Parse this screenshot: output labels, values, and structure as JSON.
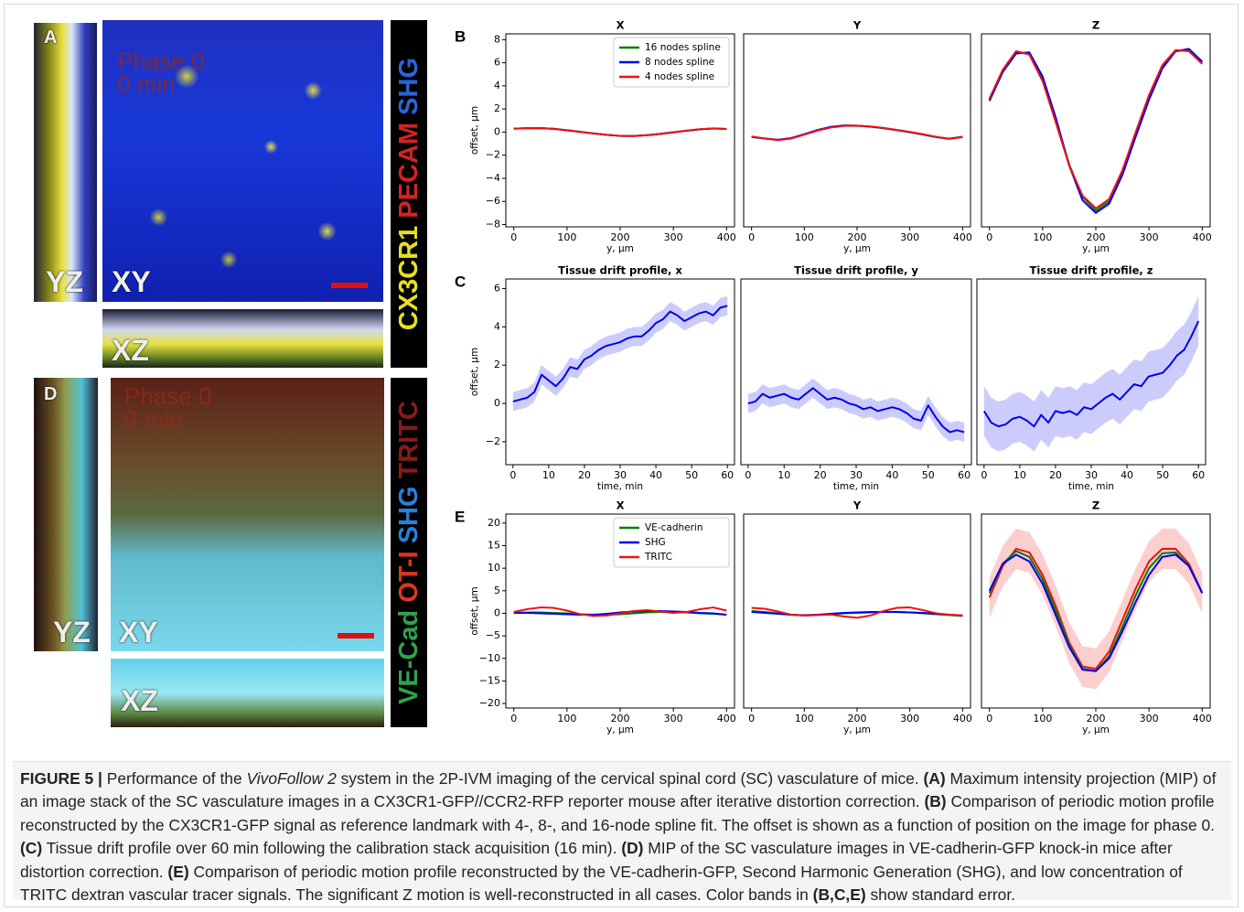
{
  "figure": {
    "panel_a": {
      "letter": "A",
      "yz": "YZ",
      "xy": "XY",
      "xz": "XZ",
      "phase": "Phase 0",
      "time": "0 min",
      "channels": [
        {
          "text": "CX3CR1",
          "color": "#e6df22"
        },
        {
          "text": "PECAM",
          "color": "#d42222"
        },
        {
          "text": "SHG",
          "color": "#2a64d8"
        }
      ]
    },
    "panel_d": {
      "letter": "D",
      "yz": "YZ",
      "xy": "XY",
      "xz": "XZ",
      "phase": "Phase 0",
      "time": "0 min",
      "channels": [
        {
          "text": "VE-Cad",
          "color": "#2fa24a"
        },
        {
          "text": "OT-I",
          "color": "#e0341c"
        },
        {
          "text": "SHG",
          "color": "#2a7fd8"
        },
        {
          "text": "TRITC",
          "color": "#8a1a1a"
        }
      ]
    },
    "caption": {
      "label": "FIGURE 5 |",
      "parts": [
        {
          "text": " Performance of the "
        },
        {
          "text": "VivoFollow 2",
          "italic": true
        },
        {
          "text": " system in the 2P-IVM imaging of the cervical spinal cord (SC) vasculature of mice. "
        },
        {
          "text": "(A)",
          "bold": true
        },
        {
          "text": " Maximum intensity projection (MIP) of an image stack of the SC vasculature images in a CX3CR1-GFP//CCR2-RFP reporter mouse after iterative distortion correction. "
        },
        {
          "text": "(B)",
          "bold": true
        },
        {
          "text": " Comparison of periodic motion profile reconstructed by the CX3CR1-GFP signal as reference landmark with 4-, 8-, and 16-node spline fit. The offset is shown as a function of position on the image for phase 0. "
        },
        {
          "text": "(C)",
          "bold": true
        },
        {
          "text": " Tissue drift profile over 60 min following the calibration stack acquisition (16 min). "
        },
        {
          "text": "(D)",
          "bold": true
        },
        {
          "text": " MIP of the SC vasculature images in VE-cadherin-GFP knock-in mice after distortion correction. "
        },
        {
          "text": "(E)",
          "bold": true
        },
        {
          "text": " Comparison of periodic motion profile reconstructed by the VE-cadherin-GFP, Second Harmonic Generation (SHG), and low concentration of TRITC dextran vascular tracer signals. The significant Z motion is well-reconstructed in all cases. Color bands in "
        },
        {
          "text": "(B,C,E)",
          "bold": true
        },
        {
          "text": " show standard error."
        }
      ]
    }
  },
  "chart_data": [
    {
      "type": "line",
      "panel": "B",
      "title": "X",
      "xlabel": "y, μm",
      "ylabel": "offset, μm",
      "legend": "upper right",
      "xlim": [
        -15,
        415
      ],
      "ylim": [
        -8.2,
        8.5
      ],
      "xticks": [
        0,
        100,
        200,
        300,
        400
      ],
      "yticks": [
        {
          "value": -8,
          "label": "−8"
        },
        {
          "value": -6,
          "label": "−6"
        },
        {
          "value": -4,
          "label": "−4"
        },
        {
          "value": -2,
          "label": "−2"
        },
        0,
        2,
        4,
        6,
        8
      ],
      "x": [
        0,
        25,
        50,
        75,
        100,
        125,
        150,
        175,
        200,
        225,
        250,
        275,
        300,
        325,
        350,
        375,
        400
      ],
      "series": [
        {
          "name": "16 nodes spline",
          "color": "#008000",
          "values": [
            0.3,
            0.34,
            0.35,
            0.28,
            0.15,
            0.02,
            -0.12,
            -0.24,
            -0.33,
            -0.34,
            -0.28,
            -0.16,
            -0.02,
            0.12,
            0.24,
            0.32,
            0.27
          ]
        },
        {
          "name": "8 nodes spline",
          "color": "#0000ee",
          "values": [
            0.3,
            0.33,
            0.34,
            0.28,
            0.16,
            0.02,
            -0.12,
            -0.25,
            -0.33,
            -0.33,
            -0.27,
            -0.16,
            -0.02,
            0.12,
            0.24,
            0.31,
            0.27
          ]
        },
        {
          "name": "4 nodes spline",
          "color": "#ee1111",
          "values": [
            0.29,
            0.34,
            0.35,
            0.29,
            0.15,
            0.01,
            -0.13,
            -0.24,
            -0.32,
            -0.34,
            -0.28,
            -0.17,
            -0.03,
            0.12,
            0.25,
            0.32,
            0.26
          ]
        }
      ]
    },
    {
      "type": "line",
      "title": "Y",
      "xlabel": "y, μm",
      "xlim": [
        -15,
        415
      ],
      "ylim": [
        -8.2,
        8.5
      ],
      "xticks": [
        0,
        100,
        200,
        300,
        400
      ],
      "x": [
        0,
        25,
        50,
        75,
        100,
        125,
        150,
        175,
        200,
        225,
        250,
        275,
        300,
        325,
        350,
        375,
        400
      ],
      "series": [
        {
          "color": "#008000",
          "values": [
            -0.4,
            -0.55,
            -0.68,
            -0.55,
            -0.2,
            0.15,
            0.42,
            0.55,
            0.55,
            0.48,
            0.35,
            0.18,
            0.0,
            -0.2,
            -0.42,
            -0.58,
            -0.42
          ]
        },
        {
          "color": "#0000ee",
          "values": [
            -0.42,
            -0.56,
            -0.66,
            -0.52,
            -0.18,
            0.18,
            0.45,
            0.58,
            0.56,
            0.47,
            0.34,
            0.17,
            -0.01,
            -0.22,
            -0.44,
            -0.57,
            -0.4
          ]
        },
        {
          "color": "#ee1111",
          "values": [
            -0.38,
            -0.55,
            -0.7,
            -0.56,
            -0.22,
            0.13,
            0.4,
            0.54,
            0.55,
            0.49,
            0.36,
            0.19,
            0.01,
            -0.19,
            -0.41,
            -0.59,
            -0.43
          ]
        }
      ]
    },
    {
      "type": "line",
      "title": "Z",
      "xlabel": "y, μm",
      "xlim": [
        -15,
        415
      ],
      "ylim": [
        -8.2,
        8.5
      ],
      "xticks": [
        0,
        100,
        200,
        300,
        400
      ],
      "x": [
        0,
        25,
        50,
        75,
        100,
        125,
        150,
        175,
        200,
        225,
        250,
        275,
        300,
        325,
        350,
        375,
        400
      ],
      "series": [
        {
          "color": "#008000",
          "values": [
            2.8,
            5.3,
            6.9,
            6.8,
            4.6,
            1.0,
            -2.8,
            -5.6,
            -6.8,
            -6.0,
            -3.5,
            -0.2,
            3.0,
            5.6,
            7.0,
            7.1,
            6.0
          ]
        },
        {
          "color": "#0000ee",
          "values": [
            2.7,
            5.2,
            6.8,
            6.9,
            4.8,
            1.2,
            -2.9,
            -5.9,
            -7.0,
            -6.2,
            -3.7,
            -0.4,
            2.8,
            5.5,
            7.0,
            7.2,
            6.1
          ]
        },
        {
          "color": "#ee1111",
          "values": [
            2.9,
            5.4,
            7.0,
            6.7,
            4.4,
            0.8,
            -2.9,
            -5.5,
            -6.6,
            -5.8,
            -3.3,
            0.0,
            3.2,
            5.8,
            7.1,
            7.0,
            5.9
          ]
        }
      ]
    },
    {
      "type": "line",
      "panel": "C",
      "title": "Tissue drift profile, x",
      "xlabel": "time, min",
      "ylabel": "offset, μm",
      "xlim": [
        -2,
        62
      ],
      "ylim": [
        -3.2,
        6.5
      ],
      "xticks": [
        0,
        10,
        20,
        30,
        40,
        50,
        60
      ],
      "yticks": [
        {
          "value": -2,
          "label": "−2"
        },
        0,
        2,
        4,
        6
      ],
      "x": [
        0,
        2,
        4,
        6,
        8,
        10,
        12,
        14,
        16,
        18,
        20,
        22,
        24,
        26,
        28,
        30,
        32,
        34,
        36,
        38,
        40,
        42,
        44,
        46,
        48,
        50,
        52,
        54,
        56,
        58,
        60
      ],
      "series": [
        {
          "color": "#0000ee",
          "error": 0.5,
          "values": [
            0.1,
            0.2,
            0.3,
            0.6,
            1.5,
            1.2,
            0.9,
            1.3,
            1.9,
            1.8,
            2.3,
            2.5,
            2.8,
            3.0,
            3.1,
            3.2,
            3.4,
            3.5,
            3.5,
            3.8,
            4.2,
            4.4,
            4.8,
            4.6,
            4.3,
            4.5,
            4.7,
            4.8,
            4.6,
            5.0,
            5.1
          ]
        }
      ]
    },
    {
      "type": "line",
      "title": "Tissue drift profile, y",
      "xlabel": "time, min",
      "xlim": [
        -2,
        62
      ],
      "ylim": [
        -3.2,
        6.5
      ],
      "xticks": [
        0,
        10,
        20,
        30,
        40,
        50,
        60
      ],
      "x": [
        0,
        2,
        4,
        6,
        8,
        10,
        12,
        14,
        16,
        18,
        20,
        22,
        24,
        26,
        28,
        30,
        32,
        34,
        36,
        38,
        40,
        42,
        44,
        46,
        48,
        50,
        52,
        54,
        56,
        58,
        60
      ],
      "series": [
        {
          "color": "#0000ee",
          "error": 0.5,
          "values": [
            0.0,
            0.1,
            0.5,
            0.3,
            0.4,
            0.5,
            0.3,
            0.2,
            0.5,
            0.8,
            0.5,
            0.2,
            0.3,
            0.2,
            0.0,
            -0.1,
            -0.3,
            -0.2,
            -0.4,
            -0.3,
            -0.2,
            -0.3,
            -0.5,
            -0.8,
            -0.9,
            -0.1,
            -0.7,
            -1.2,
            -1.5,
            -1.4,
            -1.5
          ]
        }
      ]
    },
    {
      "type": "line",
      "title": "Tissue drift profile, z",
      "xlabel": "time, min",
      "xlim": [
        -2,
        62
      ],
      "ylim": [
        -3.2,
        6.5
      ],
      "xticks": [
        0,
        10,
        20,
        30,
        40,
        50,
        60
      ],
      "x": [
        0,
        2,
        4,
        6,
        8,
        10,
        12,
        14,
        16,
        18,
        20,
        22,
        24,
        26,
        28,
        30,
        32,
        34,
        36,
        38,
        40,
        42,
        44,
        46,
        48,
        50,
        52,
        54,
        56,
        58,
        60
      ],
      "series": [
        {
          "color": "#0000ee",
          "error": 1.3,
          "values": [
            -0.4,
            -1.0,
            -1.2,
            -1.1,
            -0.8,
            -0.7,
            -0.9,
            -1.2,
            -0.6,
            -1.0,
            -0.4,
            -0.5,
            -0.4,
            -0.6,
            -0.2,
            -0.3,
            0.0,
            0.3,
            0.5,
            0.2,
            0.6,
            1.0,
            0.9,
            1.4,
            1.5,
            1.6,
            2.0,
            2.5,
            2.8,
            3.5,
            4.3
          ]
        }
      ]
    },
    {
      "type": "line",
      "panel": "E",
      "title": "X",
      "xlabel": "y, μm",
      "ylabel": "offset, μm",
      "legend": "upper right",
      "xlim": [
        -15,
        415
      ],
      "ylim": [
        -21,
        22
      ],
      "xticks": [
        0,
        100,
        200,
        300,
        400
      ],
      "yticks": [
        {
          "value": -20,
          "label": "−20"
        },
        {
          "value": -15,
          "label": "−15"
        },
        {
          "value": -10,
          "label": "−10"
        },
        {
          "value": -5,
          "label": "−5"
        },
        0,
        5,
        10,
        15,
        20
      ],
      "x": [
        0,
        25,
        50,
        75,
        100,
        125,
        150,
        175,
        200,
        225,
        250,
        275,
        300,
        325,
        350,
        375,
        400
      ],
      "series": [
        {
          "name": "VE-cadherin",
          "color": "#008000",
          "values": [
            0.1,
            0.2,
            0.2,
            0.1,
            0.0,
            -0.2,
            -0.3,
            -0.3,
            -0.2,
            0.0,
            0.2,
            0.3,
            0.3,
            0.2,
            0.0,
            -0.1,
            -0.3
          ]
        },
        {
          "name": "SHG",
          "color": "#0000ee",
          "values": [
            0.1,
            0.1,
            0.0,
            -0.1,
            -0.2,
            -0.3,
            -0.3,
            -0.1,
            0.2,
            0.4,
            0.5,
            0.5,
            0.4,
            0.3,
            0.1,
            0.0,
            -0.3
          ]
        },
        {
          "name": "TRITC",
          "color": "#ee1111",
          "values": [
            0.3,
            0.9,
            1.3,
            1.2,
            0.6,
            -0.2,
            -0.6,
            -0.5,
            0.0,
            0.5,
            0.7,
            0.4,
            0.1,
            0.3,
            0.9,
            1.3,
            0.6
          ]
        }
      ]
    },
    {
      "type": "line",
      "title": "Y",
      "xlabel": "y, μm",
      "xlim": [
        -15,
        415
      ],
      "ylim": [
        -21,
        22
      ],
      "xticks": [
        0,
        100,
        200,
        300,
        400
      ],
      "x": [
        0,
        25,
        50,
        75,
        100,
        125,
        150,
        175,
        200,
        225,
        250,
        275,
        300,
        325,
        350,
        375,
        400
      ],
      "series": [
        {
          "color": "#008000",
          "values": [
            0.5,
            0.3,
            0.0,
            -0.3,
            -0.5,
            -0.4,
            -0.2,
            0.0,
            0.1,
            0.2,
            0.3,
            0.3,
            0.2,
            0.0,
            -0.2,
            -0.4,
            -0.6
          ]
        },
        {
          "color": "#0000ee",
          "values": [
            0.3,
            0.1,
            -0.1,
            -0.3,
            -0.4,
            -0.3,
            -0.1,
            0.1,
            0.2,
            0.3,
            0.3,
            0.3,
            0.2,
            0.1,
            -0.1,
            -0.3,
            -0.5
          ]
        },
        {
          "color": "#ee1111",
          "values": [
            1.2,
            1.0,
            0.4,
            -0.3,
            -0.5,
            -0.4,
            -0.3,
            -0.7,
            -1.0,
            -0.5,
            0.5,
            1.2,
            1.3,
            0.7,
            0.0,
            -0.3,
            -0.5
          ]
        }
      ]
    },
    {
      "type": "line",
      "title": "Z",
      "xlabel": "y, μm",
      "xlim": [
        -15,
        415
      ],
      "ylim": [
        -21,
        22
      ],
      "xticks": [
        0,
        100,
        200,
        300,
        400
      ],
      "x": [
        0,
        25,
        50,
        75,
        100,
        125,
        150,
        175,
        200,
        225,
        250,
        275,
        300,
        325,
        350,
        375,
        400
      ],
      "series": [
        {
          "color": "#ee1111",
          "error": 4.5,
          "values": [
            3.5,
            10.5,
            14.3,
            13.5,
            8.5,
            1.5,
            -6.5,
            -11.8,
            -12.3,
            -8.5,
            -1.5,
            5.5,
            11.5,
            14.3,
            14.3,
            11.0,
            4.5
          ]
        },
        {
          "color": "#008000",
          "values": [
            4.5,
            11.0,
            13.8,
            12.5,
            7.5,
            0.5,
            -7.0,
            -12.3,
            -12.8,
            -9.5,
            -3.0,
            4.0,
            10.0,
            13.3,
            13.5,
            10.5,
            4.5
          ]
        },
        {
          "color": "#0000ee",
          "values": [
            5.0,
            11.0,
            13.0,
            11.5,
            6.5,
            -0.5,
            -7.5,
            -12.5,
            -12.8,
            -10.0,
            -4.0,
            2.5,
            8.5,
            12.5,
            13.0,
            10.5,
            4.5
          ]
        }
      ]
    }
  ]
}
